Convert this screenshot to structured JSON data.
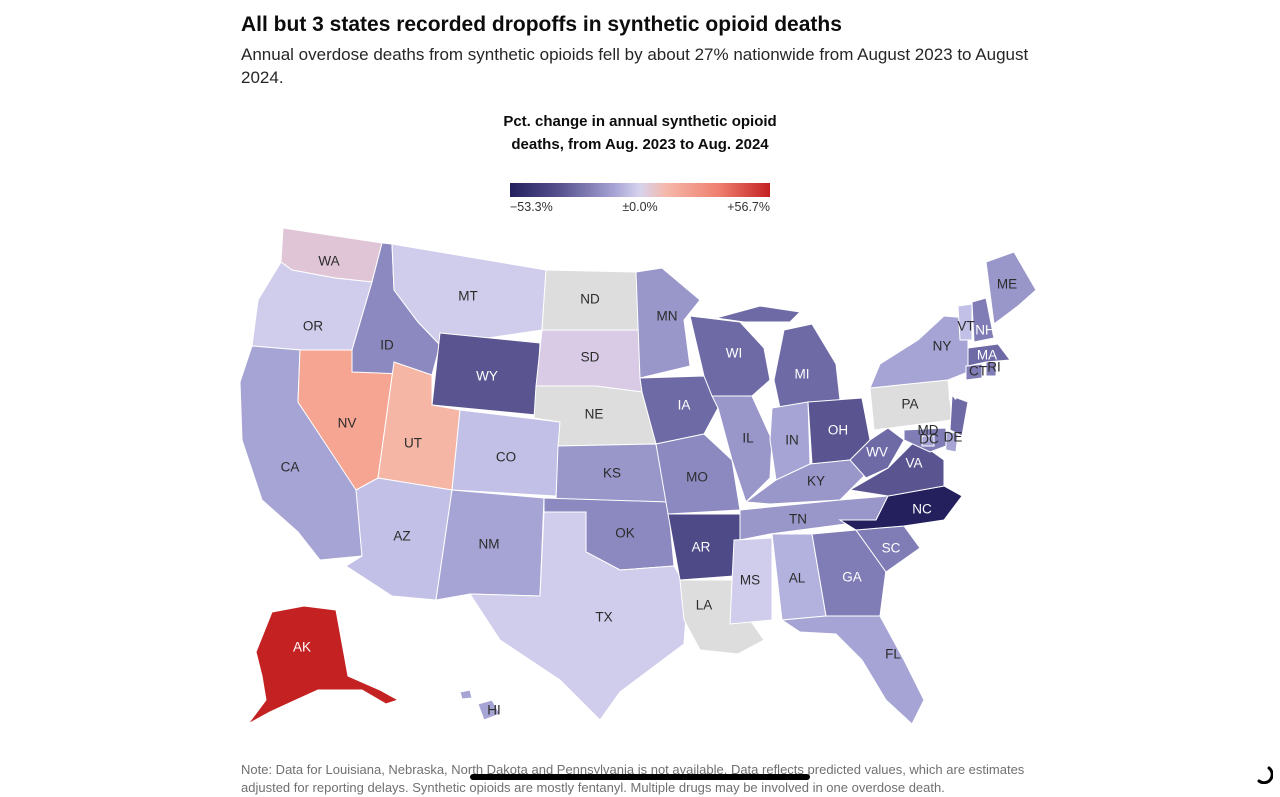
{
  "header": {
    "title": "All but 3 states recorded dropoffs in synthetic opioid deaths",
    "subtitle": "Annual overdose deaths from synthetic opioids fell by about 27% nationwide from August 2023 to August 2024."
  },
  "legend": {
    "title": "Pct. change in annual synthetic opioid deaths, from Aug. 2023 to Aug. 2024",
    "min_label": "−53.3%",
    "mid_label": "±0.0%",
    "max_label": "+56.7%",
    "colors": [
      "#24205e",
      "#5a5591",
      "#a6a3d4",
      "#d6d3ee",
      "#f5b8aa",
      "#ef8070",
      "#c42222"
    ]
  },
  "map_data": {
    "no_data_color": "#dddddd",
    "states": [
      {
        "abbr": "WA",
        "color": "#e0c5d6"
      },
      {
        "abbr": "OR",
        "color": "#d0cdec"
      },
      {
        "abbr": "CA",
        "color": "#a6a4d4"
      },
      {
        "abbr": "NV",
        "color": "#f6a593"
      },
      {
        "abbr": "ID",
        "color": "#8c89c0"
      },
      {
        "abbr": "MT",
        "color": "#d0cdec"
      },
      {
        "abbr": "WY",
        "color": "#5a5591"
      },
      {
        "abbr": "UT",
        "color": "#f6b6a6"
      },
      {
        "abbr": "AZ",
        "color": "#c2c0e6"
      },
      {
        "abbr": "CO",
        "color": "#c2c0e6"
      },
      {
        "abbr": "NM",
        "color": "#a6a4d4"
      },
      {
        "abbr": "ND",
        "color": "#dddddd"
      },
      {
        "abbr": "SD",
        "color": "#d9cbe6"
      },
      {
        "abbr": "NE",
        "color": "#dddddd"
      },
      {
        "abbr": "KS",
        "color": "#9996c9"
      },
      {
        "abbr": "OK",
        "color": "#8c89c0"
      },
      {
        "abbr": "TX",
        "color": "#d0cdec"
      },
      {
        "abbr": "MN",
        "color": "#9996c9"
      },
      {
        "abbr": "IA",
        "color": "#6e6aa6"
      },
      {
        "abbr": "MO",
        "color": "#8c89c0"
      },
      {
        "abbr": "AR",
        "color": "#4e4a88"
      },
      {
        "abbr": "LA",
        "color": "#dddddd"
      },
      {
        "abbr": "WI",
        "color": "#6e6aa6"
      },
      {
        "abbr": "IL",
        "color": "#9996c9"
      },
      {
        "abbr": "MI",
        "color": "#6e6aa6"
      },
      {
        "abbr": "IN",
        "color": "#a6a4d4"
      },
      {
        "abbr": "OH",
        "color": "#5a5591"
      },
      {
        "abbr": "KY",
        "color": "#9996c9"
      },
      {
        "abbr": "TN",
        "color": "#9996c9"
      },
      {
        "abbr": "MS",
        "color": "#d0cdec"
      },
      {
        "abbr": "AL",
        "color": "#b3b1dd"
      },
      {
        "abbr": "GA",
        "color": "#807cb6"
      },
      {
        "abbr": "FL",
        "color": "#a6a4d4"
      },
      {
        "abbr": "SC",
        "color": "#807cb6"
      },
      {
        "abbr": "NC",
        "color": "#24205e"
      },
      {
        "abbr": "VA",
        "color": "#5a5591"
      },
      {
        "abbr": "WV",
        "color": "#6e6aa6"
      },
      {
        "abbr": "PA",
        "color": "#dddddd"
      },
      {
        "abbr": "NY",
        "color": "#a6a4d4"
      },
      {
        "abbr": "NJ",
        "color": "#6e6aa6"
      },
      {
        "abbr": "DE",
        "color": "#a6a4d4"
      },
      {
        "abbr": "MD",
        "color": "#807cb6"
      },
      {
        "abbr": "DC",
        "color": "#a6a4d4"
      },
      {
        "abbr": "CT",
        "color": "#807cb6"
      },
      {
        "abbr": "RI",
        "color": "#807cb6"
      },
      {
        "abbr": "MA",
        "color": "#6e6aa6"
      },
      {
        "abbr": "VT",
        "color": "#c2c0e6"
      },
      {
        "abbr": "NH",
        "color": "#807cb6"
      },
      {
        "abbr": "ME",
        "color": "#9996c9"
      },
      {
        "abbr": "AK",
        "color": "#c42222"
      },
      {
        "abbr": "HI",
        "color": "#a6a4d4"
      }
    ]
  },
  "footer": {
    "note": "Note: Data for Louisiana, Nebraska, North Dakota and Pennsylvania is not available. Data reflects predicted values, which are estimates adjusted for reporting delays. Synthetic opioids are mostly fentanyl. Multiple drugs may be involved in one overdose death."
  }
}
